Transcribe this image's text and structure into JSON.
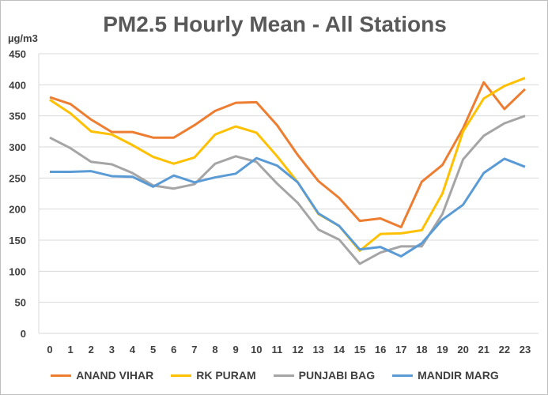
{
  "chart_data": {
    "type": "line",
    "title": "PM2.5 Hourly Mean - All Stations",
    "xlabel": "",
    "ylabel": "µg/m3",
    "ylim": [
      0,
      450
    ],
    "yticks": [
      "0",
      "50",
      "100",
      "150",
      "200",
      "250",
      "300",
      "350",
      "400",
      "450"
    ],
    "x": [
      "0",
      "1",
      "2",
      "3",
      "4",
      "5",
      "6",
      "7",
      "8",
      "9",
      "10",
      "11",
      "12",
      "13",
      "14",
      "15",
      "16",
      "17",
      "18",
      "19",
      "20",
      "21",
      "22",
      "23"
    ],
    "grid": true,
    "legend_position": "bottom",
    "series": [
      {
        "name": "ANAND VIHAR",
        "color": "#ED7D31",
        "values": [
          380,
          369,
          344,
          324,
          324,
          315,
          315,
          335,
          358,
          371,
          372,
          335,
          287,
          245,
          218,
          181,
          185,
          171,
          244,
          271,
          330,
          404,
          361,
          393
        ]
      },
      {
        "name": "RK PURAM",
        "color": "#FFC000",
        "values": [
          376,
          354,
          325,
          320,
          303,
          284,
          273,
          283,
          320,
          333,
          323,
          285,
          243,
          192,
          173,
          133,
          160,
          161,
          166,
          225,
          325,
          378,
          398,
          411
        ]
      },
      {
        "name": "PUNJABI BAG",
        "color": "#A5A5A5",
        "values": [
          315,
          298,
          276,
          272,
          258,
          238,
          233,
          240,
          273,
          285,
          276,
          241,
          210,
          167,
          151,
          112,
          130,
          140,
          140,
          192,
          280,
          318,
          338,
          350
        ]
      },
      {
        "name": "MANDIR MARG",
        "color": "#5B9BD5",
        "values": [
          260,
          260,
          261,
          253,
          252,
          236,
          254,
          243,
          251,
          257,
          282,
          270,
          243,
          193,
          173,
          135,
          139,
          124,
          145,
          183,
          207,
          258,
          281,
          268
        ]
      }
    ]
  }
}
